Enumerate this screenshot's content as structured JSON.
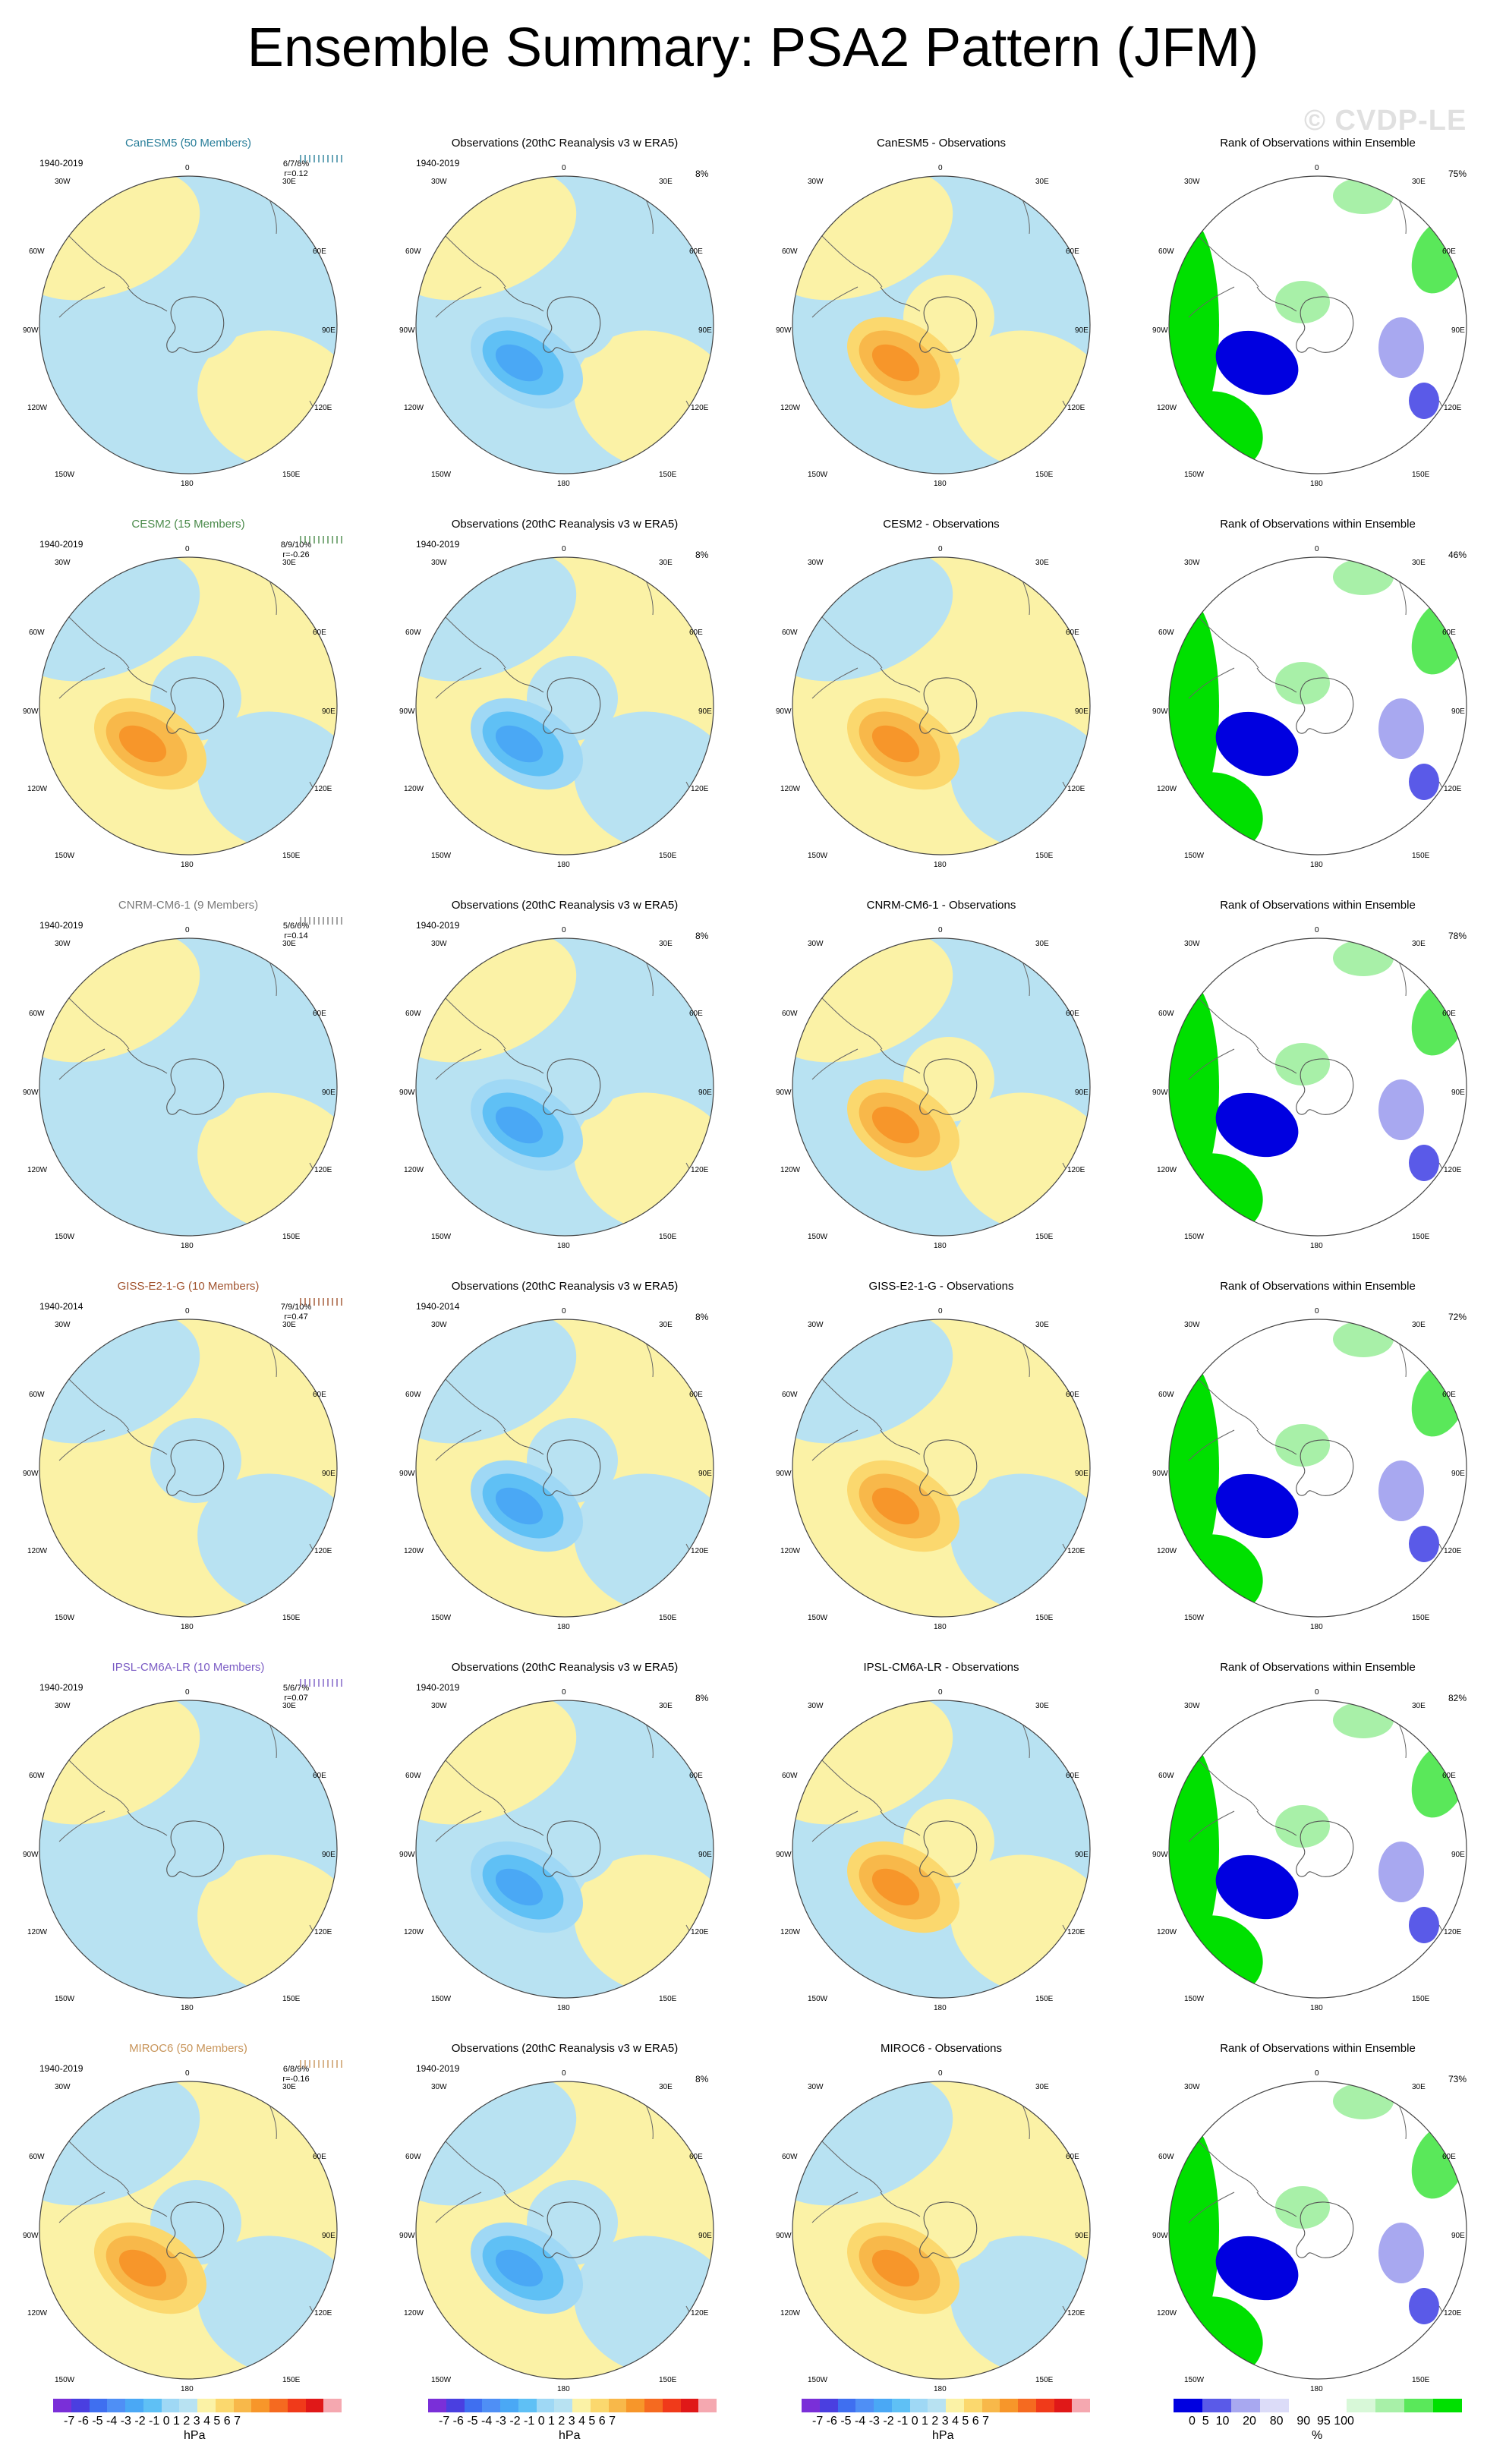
{
  "title": "Ensemble Summary: PSA2 Pattern (JFM)",
  "watermark": "© CVDP-LE",
  "columns": {
    "obs_title": "Observations (20thC Reanalysis v3 w ERA5)",
    "rank_title": "Rank of Observations within Ensemble",
    "obs_stat": "8%"
  },
  "map_labels": {
    "top": "0",
    "bottom": "180",
    "l1": "30W",
    "l2": "60W",
    "l3": "90W",
    "l4": "120W",
    "l5": "150W",
    "r1": "30E",
    "r2": "60E",
    "r3": "90E",
    "r4": "120E",
    "r5": "150E"
  },
  "rows": [
    {
      "model": "CanESM5 (50 Members)",
      "color": "#2a7f9a",
      "years": "1940-2019",
      "ens_stats": "6/7/8%",
      "corr": "r=0.12",
      "diff_title": "CanESM5 - Observations",
      "rank_stat": "75%"
    },
    {
      "model": "CESM2 (15 Members)",
      "color": "#4a8a4a",
      "years": "1940-2019",
      "ens_stats": "8/9/10%",
      "corr": "r=-0.26",
      "diff_title": "CESM2 - Observations",
      "rank_stat": "46%"
    },
    {
      "model": "CNRM-CM6-1 (9 Members)",
      "color": "#7a7a7a",
      "years": "1940-2019",
      "ens_stats": "5/6/6%",
      "corr": "r=0.14",
      "diff_title": "CNRM-CM6-1 - Observations",
      "rank_stat": "78%"
    },
    {
      "model": "GISS-E2-1-G (10 Members)",
      "color": "#a0522d",
      "years": "1940-2014",
      "ens_stats": "7/9/10%",
      "corr": "r=0.47",
      "diff_title": "GISS-E2-1-G - Observations",
      "rank_stat": "72%"
    },
    {
      "model": "IPSL-CM6A-LR (10 Members)",
      "color": "#7b5cc4",
      "years": "1940-2019",
      "ens_stats": "5/6/7%",
      "corr": "r=0.07",
      "diff_title": "IPSL-CM6A-LR - Observations",
      "rank_stat": "82%"
    },
    {
      "model": "MIROC6 (50 Members)",
      "color": "#c8955a",
      "years": "1940-2019",
      "ens_stats": "6/8/9%",
      "corr": "r=-0.16",
      "diff_title": "MIROC6 - Observations",
      "rank_stat": "73%"
    }
  ],
  "colorbars": {
    "hpa_ticks": "-7 -6 -5 -4 -3 -2 -1 0 1 2 3 4 5 6 7",
    "hpa_unit": "hPa",
    "rank_ticks": "0  5  10    20    80    90  95 100",
    "rank_unit": "%",
    "hpa_colors": [
      "#7a2fd8",
      "#4a3fe0",
      "#3f6ff0",
      "#4f8ff5",
      "#4aa8f5",
      "#5fc0f5",
      "#9fd8f5",
      "#b8e2f2",
      "#fbf2a6",
      "#fbd86e",
      "#f8b84a",
      "#f7962a",
      "#f56a20",
      "#f03a1a",
      "#e01818",
      "#f5a8b0"
    ],
    "rank_colors": [
      "#0000e0",
      "#5a5ae8",
      "#a8a8f0",
      "#dcdcf8",
      "#ffffff",
      "#ffffff",
      "#d8f8d8",
      "#a8f0a8",
      "#5ae85a",
      "#00e000"
    ]
  }
}
